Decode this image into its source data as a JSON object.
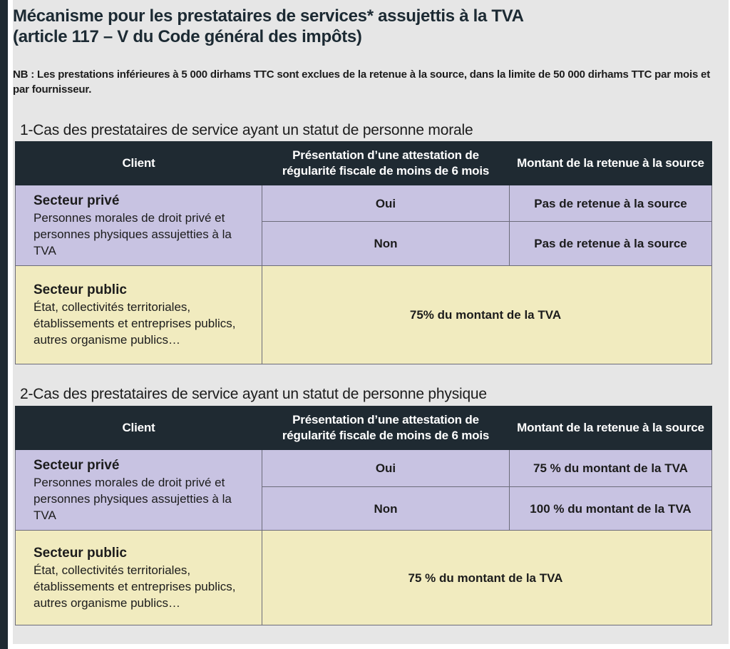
{
  "title": {
    "line1": "Mécanisme pour les prestataires de services* assujettis à la TVA",
    "line2": "(article 117 – V du Code général des impôts)"
  },
  "nb": "NB : Les prestations inférieures à 5 000 dirhams TTC sont exclues de la retenue à la source, dans la limite de 50 000 dirhams TTC par mois et par fournisseur.",
  "headers": {
    "client": "Client",
    "attestation": "Présentation d’une attestation de régularité fiscale de moins de 6 mois",
    "montant": "Montant de la retenue à la source"
  },
  "clients": {
    "prive_title": "Secteur privé",
    "prive_desc": "Personnes morales de droit privé et personnes physiques assujetties à la TVA",
    "public_title": "Secteur public",
    "public_desc": "État, collectivités territoriales, établissements et entreprises publics, autres organisme publics…"
  },
  "sections": [
    {
      "title": "1-Cas des prestataires de service ayant un statut de personne morale",
      "rows": [
        {
          "attestation": "Oui",
          "montant": "Pas de retenue à la source"
        },
        {
          "attestation": "Non",
          "montant": "Pas de retenue à la source"
        }
      ],
      "public_value": "75% du montant de la TVA"
    },
    {
      "title": "2-Cas des prestataires de service ayant un statut de personne physique",
      "rows": [
        {
          "attestation": "Oui",
          "montant": "75 % du montant de la TVA"
        },
        {
          "attestation": "Non",
          "montant": "100 % du montant de la TVA"
        }
      ],
      "public_value": "75 % du montant de la TVA"
    }
  ],
  "colors": {
    "header_bg": "#1f2a32",
    "prive_bg": "#c8c3e2",
    "public_bg": "#f1ebbf",
    "panel_bg": "#e6e6e6"
  }
}
